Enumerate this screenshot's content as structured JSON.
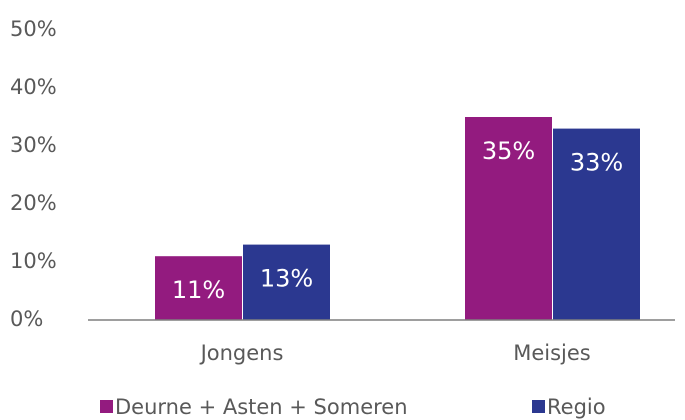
{
  "chart_data": {
    "type": "bar",
    "categories": [
      "Jongens",
      "Meisjes"
    ],
    "series": [
      {
        "name": "Deurne + Asten + Someren",
        "color": "#931b7f",
        "values": [
          11,
          35
        ],
        "value_labels": [
          "11%",
          "35%"
        ]
      },
      {
        "name": "Regio",
        "color": "#2b3890",
        "values": [
          13,
          33
        ],
        "value_labels": [
          "13%",
          "33%"
        ]
      }
    ],
    "ylim": [
      0,
      50
    ],
    "yticks": [
      {
        "value": 0,
        "label": "0%"
      },
      {
        "value": 10,
        "label": "10%"
      },
      {
        "value": 20,
        "label": "20%"
      },
      {
        "value": 30,
        "label": "30%"
      },
      {
        "value": 40,
        "label": "40%"
      },
      {
        "value": 50,
        "label": "50%"
      }
    ],
    "grid": false,
    "legend": "bottom"
  }
}
